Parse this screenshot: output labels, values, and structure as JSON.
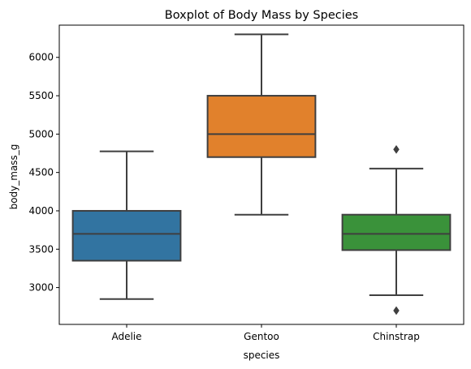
{
  "chart_data": {
    "type": "boxplot",
    "title": "Boxplot of Body Mass by Species",
    "xlabel": "species",
    "ylabel": "body_mass_g",
    "ylim": [
      2520,
      6420
    ],
    "yticks": [
      3000,
      3500,
      4000,
      4500,
      5000,
      5500,
      6000
    ],
    "categories": [
      "Adelie",
      "Gentoo",
      "Chinstrap"
    ],
    "series": [
      {
        "category": "Adelie",
        "whisker_low": 2850,
        "q1": 3350,
        "median": 3700,
        "q3": 4000,
        "whisker_high": 4775,
        "outliers": [],
        "color": "#3274a1"
      },
      {
        "category": "Gentoo",
        "whisker_low": 3950,
        "q1": 4700,
        "median": 5000,
        "q3": 5500,
        "whisker_high": 6300,
        "outliers": [],
        "color": "#e1812c"
      },
      {
        "category": "Chinstrap",
        "whisker_low": 2900,
        "q1": 3488,
        "median": 3700,
        "q3": 3950,
        "whisker_high": 4550,
        "outliers": [
          2700,
          4800
        ],
        "color": "#3a923a"
      }
    ],
    "grid": false,
    "legend": "none",
    "line_color": "#3f3f3f"
  }
}
